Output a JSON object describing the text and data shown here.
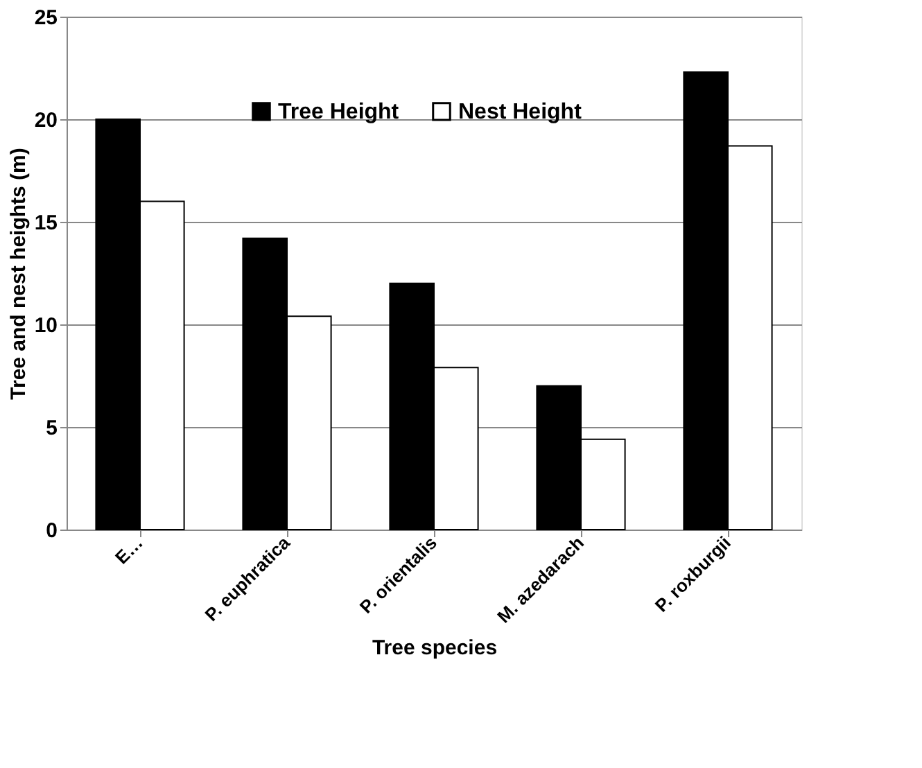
{
  "chart_data": {
    "type": "bar",
    "xlabel": "Tree species",
    "ylabel": "Tree and nest heights (m)",
    "categories": [
      "E…",
      "P. euphratica",
      "P. orientalis",
      "M. azedarach",
      "P. roxburgii"
    ],
    "series": [
      {
        "name": "Tree Height",
        "color": "#000000",
        "values": [
          20,
          14.2,
          12,
          7,
          22.3
        ]
      },
      {
        "name": "Nest Height",
        "color": "#ffffff",
        "values": [
          16,
          10.4,
          7.9,
          4.4,
          18.7
        ]
      }
    ],
    "ylim": [
      0,
      25
    ],
    "yticks": [
      0,
      5,
      10,
      15,
      20,
      25
    ],
    "grid": "y",
    "legend": "top"
  }
}
